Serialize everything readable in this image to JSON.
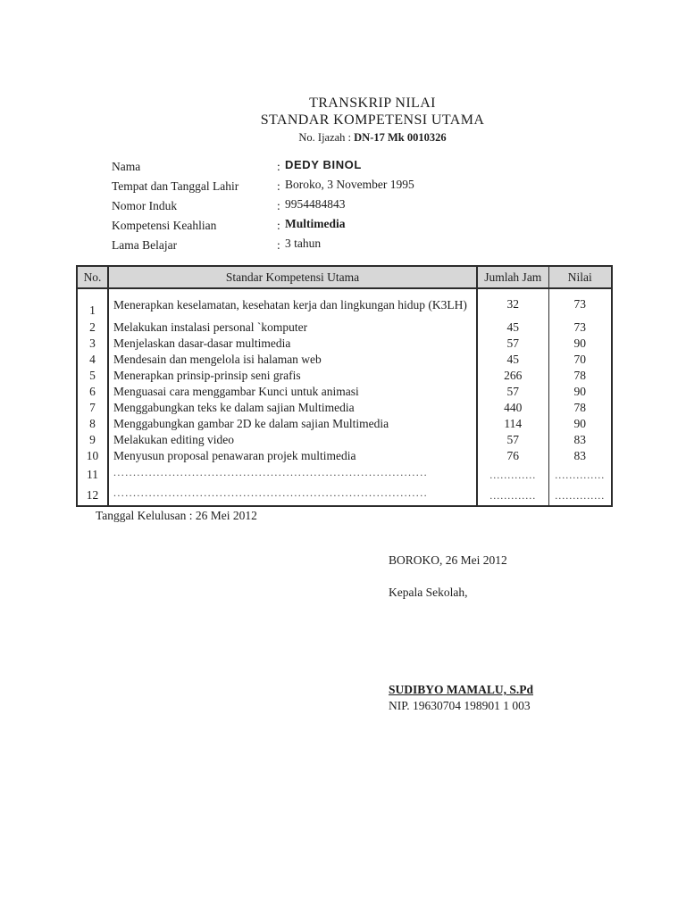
{
  "colors": {
    "page_bg": "#ffffff",
    "text": "#1d1d1d",
    "table_header_bg": "#d7d7d7",
    "table_border": "#2b2b2b"
  },
  "header": {
    "title": "TRANSKRIP NILAI",
    "subtitle": "STANDAR KOMPETENSI UTAMA",
    "certificate_label": "No. Ijazah :",
    "certificate_number": "DN-17 Mk 0010326"
  },
  "student": {
    "fields": [
      {
        "label": "Nama",
        "separator": ":",
        "value": "DEDY BINOL",
        "emphasis": "bold-sans"
      },
      {
        "label": "Tempat dan Tanggal Lahir",
        "separator": ":",
        "value": "Boroko, 3 November 1995",
        "emphasis": "normal"
      },
      {
        "label": "Nomor Induk",
        "separator": ":",
        "value": "9954484843",
        "emphasis": "normal"
      },
      {
        "label": "Kompetensi Keahlian",
        "separator": ":",
        "value": "Multimedia",
        "emphasis": "bold"
      },
      {
        "label": "Lama Belajar",
        "separator": ":",
        "value": "3 tahun",
        "emphasis": "normal"
      }
    ]
  },
  "table": {
    "headers": [
      "No.",
      "Standar Kompetensi Utama",
      "Jumlah Jam",
      "Nilai"
    ],
    "rows": [
      {
        "no": "1",
        "kompetensi": "Menerapkan keselamatan, kesehatan kerja dan lingkungan hidup (K3LH)",
        "jam": "32",
        "nilai": "73",
        "multiline": true,
        "dotted": false
      },
      {
        "no": "2",
        "kompetensi": "Melakukan instalasi personal `komputer",
        "jam": "45",
        "nilai": "73",
        "multiline": false,
        "dotted": false
      },
      {
        "no": "3",
        "kompetensi": "Menjelaskan dasar-dasar multimedia",
        "jam": "57",
        "nilai": "90",
        "multiline": false,
        "dotted": false
      },
      {
        "no": "4",
        "kompetensi": "Mendesain dan mengelola isi halaman web",
        "jam": "45",
        "nilai": "70",
        "multiline": false,
        "dotted": false
      },
      {
        "no": "5",
        "kompetensi": "Menerapkan prinsip-prinsip seni grafis",
        "jam": "266",
        "nilai": "78",
        "multiline": false,
        "dotted": false
      },
      {
        "no": "6",
        "kompetensi": "Menguasai cara menggambar Kunci untuk animasi",
        "jam": "57",
        "nilai": "90",
        "multiline": false,
        "dotted": false
      },
      {
        "no": "7",
        "kompetensi": "Menggabungkan teks ke dalam sajian Multimedia",
        "jam": "440",
        "nilai": "78",
        "multiline": false,
        "dotted": false
      },
      {
        "no": "8",
        "kompetensi": "Menggabungkan gambar 2D  ke dalam sajian Multimedia",
        "jam": "114",
        "nilai": "90",
        "multiline": false,
        "dotted": false
      },
      {
        "no": "9",
        "kompetensi": "Melakukan editing video",
        "jam": "57",
        "nilai": "83",
        "multiline": false,
        "dotted": false
      },
      {
        "no": "10",
        "kompetensi": "Menyusun proposal penawaran projek multimedia",
        "jam": "76",
        "nilai": "83",
        "multiline": false,
        "dotted": false
      },
      {
        "no": "11",
        "kompetensi": "........................................................................................................................",
        "jam": ".............",
        "nilai": "..............",
        "multiline": false,
        "dotted": true
      },
      {
        "no": "12",
        "kompetensi": "........................................................................................................................",
        "jam": ".............",
        "nilai": "..............",
        "multiline": false,
        "dotted": true
      }
    ]
  },
  "footer": {
    "graduation_line": "Tanggal Kelulusan : 26 Mei 2012",
    "place_date": "BOROKO, 26 Mei 2012",
    "signer_role": "Kepala Sekolah,",
    "signer_name": "SUDIBYO MAMALU, S.Pd",
    "signer_nip": "NIP. 19630704 198901 1 003"
  }
}
